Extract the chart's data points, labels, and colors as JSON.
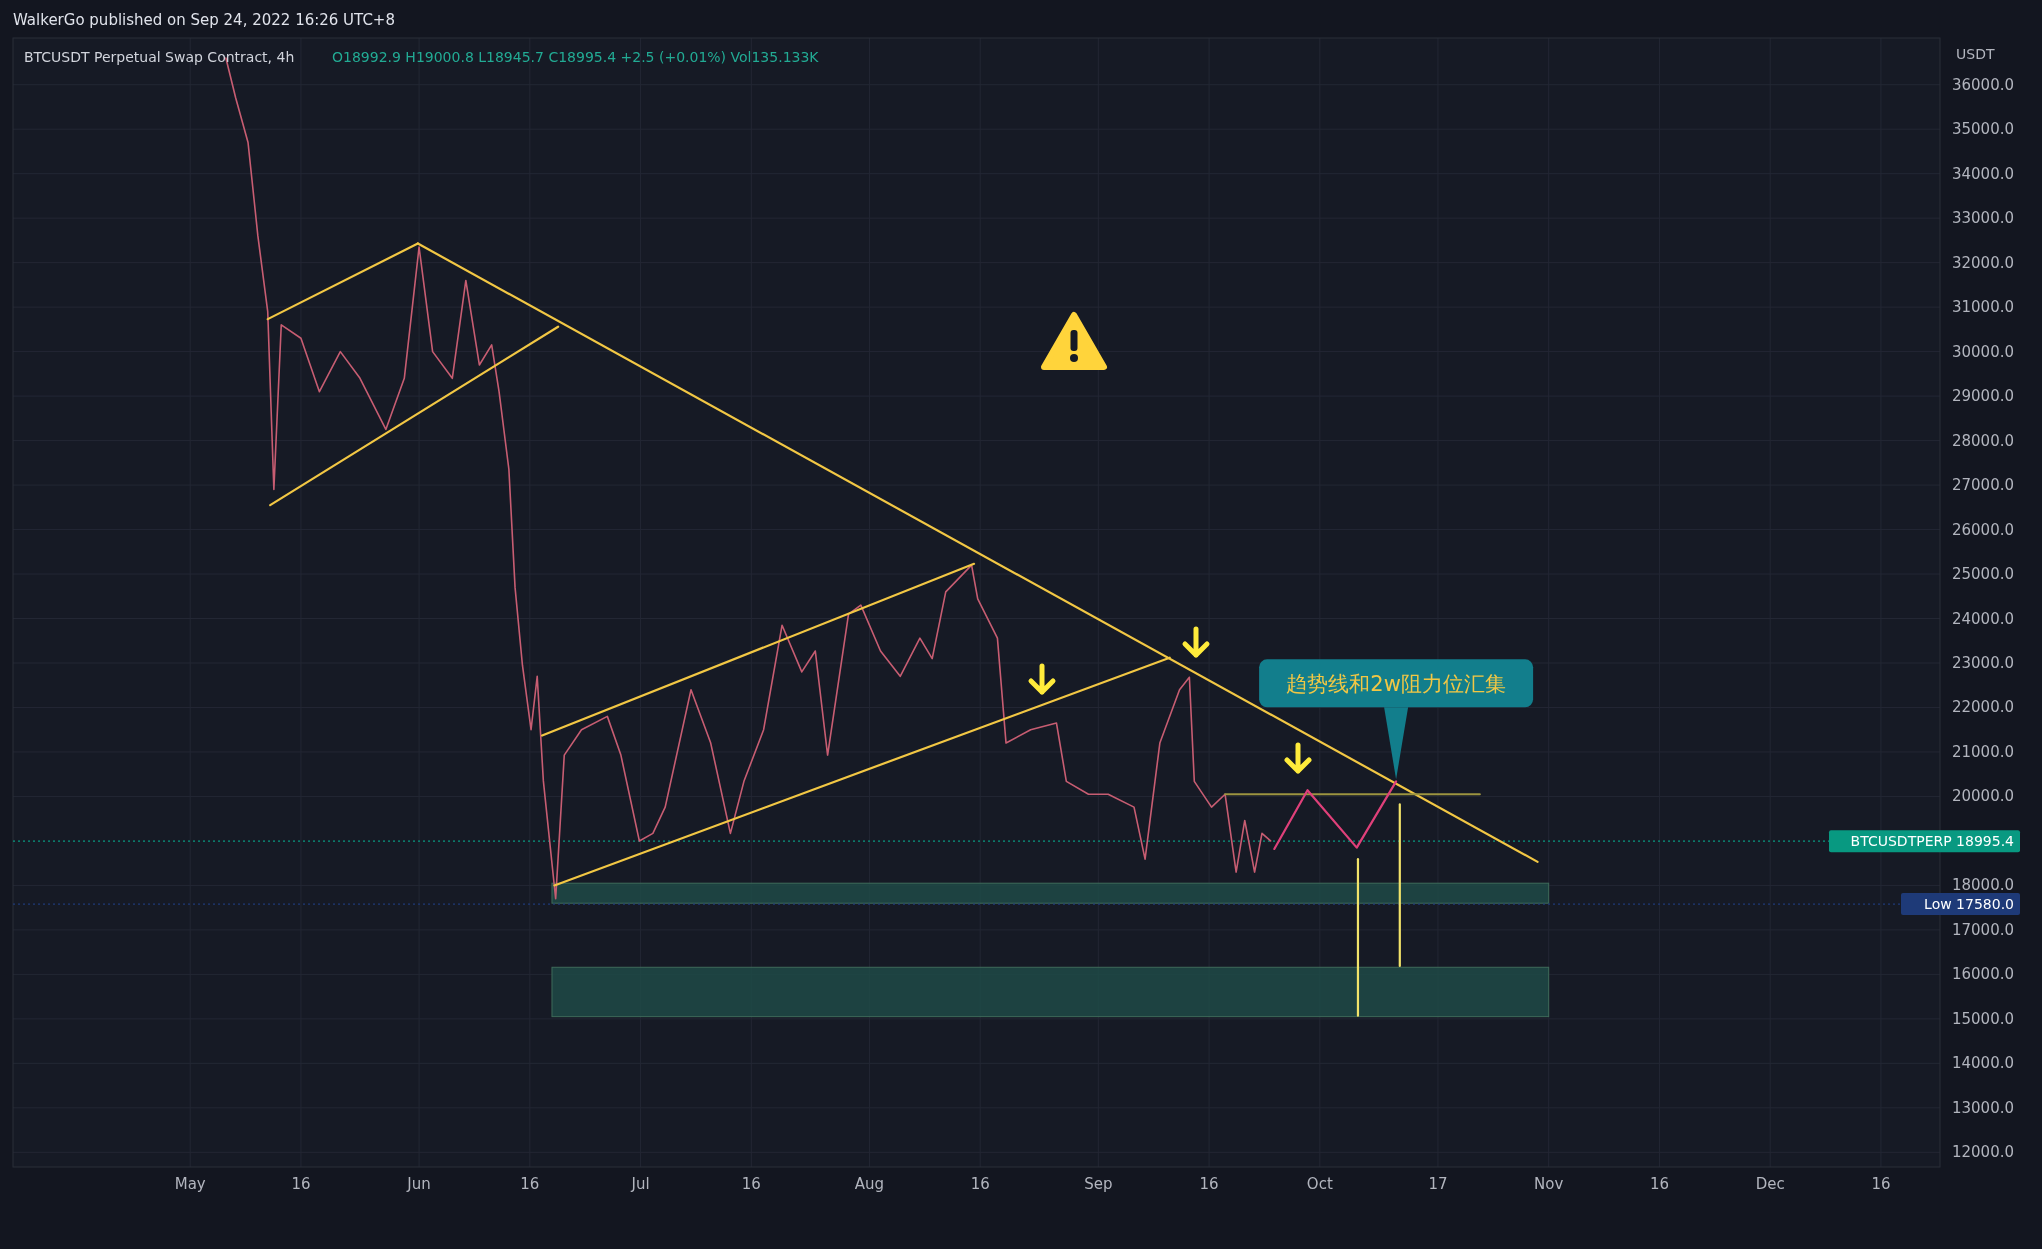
{
  "chart_data": {
    "type": "line",
    "title": "BTCUSDT Perpetual Swap Contract, 4h",
    "subtitle": "O18992.9 H19000.8 L18945.7 C18995.4 +2.5 (+0.01%) Vol135.133K",
    "ylabel": "USDT",
    "annotations": [
      "WalkerGo published on Sep 24, 2022 16:26 UTC+8",
      {
        "text": "趋势线和2w阻力位汇集",
        "x": "2022-10-11T08:00",
        "y": 20340
      }
    ],
    "xlim": [
      "2022-04-07",
      "2022-12-24"
    ],
    "xticks": [
      {
        "value": "2022-05-01",
        "label": "May"
      },
      {
        "value": "2022-05-16",
        "label": "16"
      },
      {
        "value": "2022-06-01",
        "label": "Jun"
      },
      {
        "value": "2022-06-16",
        "label": "16"
      },
      {
        "value": "2022-07-01",
        "label": "Jul"
      },
      {
        "value": "2022-07-16",
        "label": "16"
      },
      {
        "value": "2022-08-01",
        "label": "Aug"
      },
      {
        "value": "2022-08-16",
        "label": "16"
      },
      {
        "value": "2022-09-01",
        "label": "Sep"
      },
      {
        "value": "2022-09-16",
        "label": "16"
      },
      {
        "value": "2022-10-01",
        "label": "Oct"
      },
      {
        "value": "2022-10-17",
        "label": "17"
      },
      {
        "value": "2022-11-01",
        "label": "Nov"
      },
      {
        "value": "2022-11-16",
        "label": "16"
      },
      {
        "value": "2022-12-01",
        "label": "Dec"
      },
      {
        "value": "2022-12-16",
        "label": "16"
      }
    ],
    "ylim": [
      11670,
      37050
    ],
    "yticks": [
      {
        "value": 12000,
        "label": "12000.0"
      },
      {
        "value": 13000,
        "label": "13000.0"
      },
      {
        "value": 14000,
        "label": "14000.0"
      },
      {
        "value": 15000,
        "label": "15000.0"
      },
      {
        "value": 16000,
        "label": "16000.0"
      },
      {
        "value": 17000,
        "label": "17000.0"
      },
      {
        "value": 18000,
        "label": "18000.0"
      },
      {
        "value": 20000,
        "label": "20000.0"
      },
      {
        "value": 21000,
        "label": "21000.0"
      },
      {
        "value": 22000,
        "label": "22000.0"
      },
      {
        "value": 23000,
        "label": "23000.0"
      },
      {
        "value": 24000,
        "label": "24000.0"
      },
      {
        "value": 25000,
        "label": "25000.0"
      },
      {
        "value": 26000,
        "label": "26000.0"
      },
      {
        "value": 27000,
        "label": "27000.0"
      },
      {
        "value": 28000,
        "label": "28000.0"
      },
      {
        "value": 29000,
        "label": "29000.0"
      },
      {
        "value": 30000,
        "label": "30000.0"
      },
      {
        "value": 31000,
        "label": "31000.0"
      },
      {
        "value": 32000,
        "label": "32000.0"
      },
      {
        "value": 33000,
        "label": "33000.0"
      },
      {
        "value": 34000,
        "label": "34000.0"
      },
      {
        "value": 35000,
        "label": "35000.0"
      },
      {
        "value": 36000,
        "label": "36000.0"
      }
    ],
    "grid": true,
    "series": [
      {
        "type": "line",
        "color": "#c75d72",
        "x": [
          "2022-05-05T20:00",
          "2022-05-07T04:00",
          "2022-05-08T20:00",
          "2022-05-10T04:00",
          "2022-05-11T12:00",
          "2022-05-12T08:00",
          "2022-05-13T08:00",
          "2022-05-16T00:00",
          "2022-05-18T12:00",
          "2022-05-21T08:00",
          "2022-05-24T00:00",
          "2022-05-27T12:00",
          "2022-05-30T00:00",
          "2022-06-01T00:00",
          "2022-06-02T20:00",
          "2022-06-05T12:00",
          "2022-06-07T08:00",
          "2022-06-09T04:00",
          "2022-06-10T20:00",
          "2022-06-11T20:00",
          "2022-06-13T04:00",
          "2022-06-14T00:00",
          "2022-06-15T00:00",
          "2022-06-16T04:00",
          "2022-06-17T00:00",
          "2022-06-17T20:00",
          "2022-06-19T12:00",
          "2022-06-20T16:00",
          "2022-06-23T00:00",
          "2022-06-26T12:00",
          "2022-06-28T08:00",
          "2022-06-30T20:00",
          "2022-07-02T16:00",
          "2022-07-04T08:00",
          "2022-07-07T20:00",
          "2022-07-10T12:00",
          "2022-07-13T04:00",
          "2022-07-15T00:00",
          "2022-07-17T16:00",
          "2022-07-20T04:00",
          "2022-07-22T20:00",
          "2022-07-24T16:00",
          "2022-07-26T08:00",
          "2022-07-29T04:00",
          "2022-07-30T20:00",
          "2022-08-02T12:00",
          "2022-08-05T04:00",
          "2022-08-07T20:00",
          "2022-08-09T12:00",
          "2022-08-11T08:00",
          "2022-08-14T20:00",
          "2022-08-15T16:00",
          "2022-08-18T08:00",
          "2022-08-19T12:00",
          "2022-08-22T20:00",
          "2022-08-26T08:00",
          "2022-08-27T16:00",
          "2022-08-30T16:00",
          "2022-09-02T08:00",
          "2022-09-05T20:00",
          "2022-09-07T08:00",
          "2022-09-09T08:00",
          "2022-09-12T00:00",
          "2022-09-13T08:00",
          "2022-09-14T00:00",
          "2022-09-16T08:00",
          "2022-09-18T04:00",
          "2022-09-19T16:00",
          "2022-09-20T20:00",
          "2022-09-22T04:00",
          "2022-09-23T04:00",
          "2022-09-24T08:00"
        ],
        "values": [
          36600,
          35700,
          34700,
          32600,
          30900,
          26900,
          30600,
          30300,
          29100,
          30000,
          29400,
          28250,
          29400,
          32350,
          30000,
          29400,
          31600,
          29700,
          30150,
          29100,
          27350,
          24700,
          22950,
          21500,
          22700,
          20350,
          17700,
          20930,
          21500,
          21800,
          20930,
          19000,
          19170,
          19760,
          22400,
          21200,
          19170,
          20340,
          21500,
          23850,
          22800,
          23270,
          20930,
          24100,
          24300,
          23270,
          22700,
          23560,
          23100,
          24600,
          25200,
          24440,
          23560,
          21200,
          21500,
          21650,
          20340,
          20050,
          20050,
          19760,
          18590,
          21200,
          22400,
          22680,
          20340,
          19760,
          20050,
          18300,
          19460,
          18300,
          19170,
          19000
        ]
      },
      {
        "type": "line",
        "color": "#f2c744",
        "x": [
          "2022-05-11T12:00",
          "2022-05-31T20:00"
        ],
        "values": [
          30730,
          32430
        ]
      },
      {
        "type": "line",
        "color": "#f2c744",
        "x": [
          "2022-05-11T20:00",
          "2022-06-19T20:00"
        ],
        "values": [
          26550,
          30560
        ]
      },
      {
        "type": "line",
        "color": "#f2c744",
        "x": [
          "2022-05-31T20:00",
          "2022-10-30T12:00"
        ],
        "values": [
          32430,
          18530
        ]
      },
      {
        "type": "line",
        "color": "#f2c744",
        "x": [
          "2022-06-17T16:00",
          "2022-08-15T04:00"
        ],
        "values": [
          21370,
          25230
        ]
      },
      {
        "type": "line",
        "color": "#f2c744",
        "x": [
          "2022-06-19T08:00",
          "2022-09-10T16:00"
        ],
        "values": [
          18000,
          23120
        ]
      },
      {
        "type": "line",
        "color": "#9c9440",
        "x": [
          "2022-09-18T04:00",
          "2022-10-22T16:00"
        ],
        "values": [
          20050,
          20050
        ]
      },
      {
        "type": "line",
        "color": "#e0407a",
        "x": [
          "2022-09-24T20:00",
          "2022-09-29T08:00",
          "2022-10-06T00:00",
          "2022-10-11T08:00"
        ],
        "values": [
          18820,
          20140,
          18850,
          20340
        ]
      },
      {
        "type": "line",
        "color": "#f2e36a",
        "x": [
          "2022-10-06T04:00",
          "2022-10-06T04:00"
        ],
        "values": [
          18590,
          15070
        ]
      },
      {
        "type": "line",
        "color": "#f2e36a",
        "x": [
          "2022-10-11T20:00",
          "2022-10-11T20:00"
        ],
        "values": [
          19820,
          16190
        ]
      }
    ],
    "bands": [
      {
        "axis": "y",
        "from": 17600,
        "to": 18050,
        "color": "#1f4a47"
      },
      {
        "axis": "y",
        "from": 15050,
        "to": 16160,
        "color": "#1f4a47"
      }
    ],
    "ref_lines": [
      {
        "axis": "y",
        "value": 18995.4,
        "label": "BTCUSDTPERP 18995.4",
        "color": "#089981",
        "line_style": "dotted"
      },
      {
        "axis": "y",
        "value": 17580,
        "label": "Low 17580.0",
        "color": "#1e3a78",
        "line_style": "dotted"
      }
    ]
  }
}
